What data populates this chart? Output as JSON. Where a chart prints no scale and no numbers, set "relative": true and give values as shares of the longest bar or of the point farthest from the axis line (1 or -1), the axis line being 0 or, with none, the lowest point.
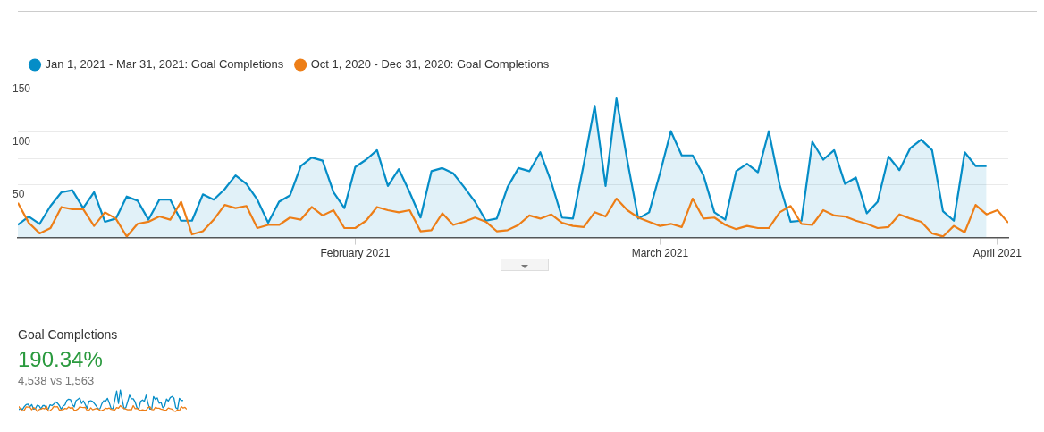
{
  "chart_data": [
    {
      "type": "line",
      "x": [
        "2021-01-01",
        "2021-01-02",
        "2021-01-03",
        "2021-01-04",
        "2021-01-05",
        "2021-01-06",
        "2021-01-07",
        "2021-01-08",
        "2021-01-09",
        "2021-01-10",
        "2021-01-11",
        "2021-01-12",
        "2021-01-13",
        "2021-01-14",
        "2021-01-15",
        "2021-01-16",
        "2021-01-17",
        "2021-01-18",
        "2021-01-19",
        "2021-01-20",
        "2021-01-21",
        "2021-01-22",
        "2021-01-23",
        "2021-01-24",
        "2021-01-25",
        "2021-01-26",
        "2021-01-27",
        "2021-01-28",
        "2021-01-29",
        "2021-01-30",
        "2021-01-31",
        "2021-02-01",
        "2021-02-02",
        "2021-02-03",
        "2021-02-04",
        "2021-02-05",
        "2021-02-06",
        "2021-02-07",
        "2021-02-08",
        "2021-02-09",
        "2021-02-10",
        "2021-02-11",
        "2021-02-12",
        "2021-02-13",
        "2021-02-14",
        "2021-02-15",
        "2021-02-16",
        "2021-02-17",
        "2021-02-18",
        "2021-02-19",
        "2021-02-20",
        "2021-02-21",
        "2021-02-22",
        "2021-02-23",
        "2021-02-24",
        "2021-02-25",
        "2021-02-26",
        "2021-02-27",
        "2021-02-28",
        "2021-03-01",
        "2021-03-02",
        "2021-03-03",
        "2021-03-04",
        "2021-03-05",
        "2021-03-06",
        "2021-03-07",
        "2021-03-08",
        "2021-03-09",
        "2021-03-10",
        "2021-03-11",
        "2021-03-12",
        "2021-03-13",
        "2021-03-14",
        "2021-03-15",
        "2021-03-16",
        "2021-03-17",
        "2021-03-18",
        "2021-03-19",
        "2021-03-20",
        "2021-03-21",
        "2021-03-22",
        "2021-03-23",
        "2021-03-24",
        "2021-03-25",
        "2021-03-26",
        "2021-03-27",
        "2021-03-28",
        "2021-03-29",
        "2021-03-30",
        "2021-03-31",
        "2021-04-01",
        "2021-04-02"
      ],
      "xlim": [
        "2021-01-01",
        "2021-04-02"
      ],
      "xticks": [
        {
          "value": "2021-02-01",
          "label": "February 2021"
        },
        {
          "value": "2021-03-01",
          "label": "March 2021"
        },
        {
          "value": "2021-04-01",
          "label": "April 2021"
        }
      ],
      "ylim": [
        0,
        150
      ],
      "yticks": [
        50,
        {
          "value": 75,
          "label": null
        },
        100,
        {
          "value": 125,
          "label": null
        },
        150
      ],
      "series": [
        {
          "name": "Jan 1, 2021 - Mar 31, 2021: Goal Completions",
          "type": "area",
          "color": "#058dc7",
          "values": [
            12,
            20,
            13,
            30,
            43,
            45,
            28,
            43,
            15,
            18,
            39,
            35,
            17,
            36,
            36,
            16,
            16,
            41,
            36,
            46,
            59,
            51,
            36,
            14,
            34,
            40,
            68,
            76,
            73,
            43,
            28,
            67,
            74,
            83,
            49,
            65,
            43,
            19,
            63,
            66,
            61,
            48,
            34,
            16,
            18,
            48,
            66,
            63,
            81,
            53,
            19,
            18,
            70,
            125,
            49,
            132,
            73,
            18,
            24,
            61,
            101,
            78,
            78,
            59,
            24,
            17,
            63,
            70,
            62,
            101,
            50,
            15,
            16,
            91,
            74,
            83,
            51,
            57,
            23,
            34,
            77,
            64,
            85,
            93,
            83,
            25,
            16,
            81,
            68,
            68,
            null,
            null
          ]
        },
        {
          "name": "Oct 1, 2020 - Dec 31, 2020: Goal Completions",
          "type": "line",
          "color": "#ed7e17",
          "values": [
            33,
            14,
            4,
            9,
            29,
            27,
            27,
            11,
            24,
            18,
            1,
            13,
            15,
            20,
            17,
            34,
            3,
            6,
            17,
            31,
            28,
            30,
            9,
            12,
            12,
            19,
            17,
            29,
            21,
            26,
            9,
            9,
            16,
            29,
            26,
            24,
            26,
            6,
            7,
            23,
            12,
            15,
            19,
            15,
            6,
            7,
            12,
            21,
            18,
            22,
            14,
            11,
            10,
            24,
            20,
            37,
            26,
            19,
            15,
            11,
            13,
            10,
            37,
            18,
            19,
            12,
            8,
            11,
            9,
            9,
            24,
            30,
            13,
            12,
            26,
            21,
            20,
            16,
            13,
            9,
            10,
            22,
            18,
            15,
            4,
            1,
            11,
            5,
            31,
            22,
            26,
            14
          ]
        }
      ],
      "grid": "y",
      "legend": "top left",
      "marker": "none"
    },
    {
      "type": "line",
      "title": "Goal Completions",
      "annotations": [
        "190.34%",
        "4,538 vs 1,563"
      ],
      "relative": true,
      "marker": "none",
      "categories": [
        null,
        null,
        null,
        null,
        null,
        null,
        null,
        null,
        null,
        null,
        null,
        null,
        null,
        null,
        null,
        null,
        null,
        null,
        null,
        null,
        null,
        null,
        null,
        null,
        null,
        null,
        null,
        null,
        null,
        null,
        null,
        null,
        null,
        null,
        null,
        null,
        null,
        null,
        null,
        null,
        null,
        null,
        null,
        null,
        null,
        null,
        null,
        null,
        null,
        null,
        null,
        null,
        null,
        null,
        null,
        null,
        null,
        null,
        null,
        null,
        null,
        null,
        null,
        null,
        null,
        null,
        null,
        null,
        null,
        null,
        null,
        null,
        null,
        null,
        null,
        null,
        null,
        null,
        null,
        null,
        null,
        null,
        null,
        null,
        null,
        null,
        null,
        null,
        null,
        null,
        null,
        null
      ],
      "series": [
        {
          "color": "#058dc7",
          "values": [
            0.08,
            0.15,
            0.09,
            0.22,
            0.32,
            0.34,
            0.21,
            0.32,
            0.11,
            0.13,
            0.29,
            0.26,
            0.12,
            0.27,
            0.27,
            0.11,
            0.11,
            0.31,
            0.27,
            0.34,
            0.44,
            0.38,
            0.27,
            0.1,
            0.25,
            0.3,
            0.51,
            0.57,
            0.55,
            0.32,
            0.21,
            0.5,
            0.56,
            0.63,
            0.37,
            0.49,
            0.32,
            0.14,
            0.47,
            0.5,
            0.46,
            0.36,
            0.25,
            0.11,
            0.13,
            0.36,
            0.5,
            0.47,
            0.61,
            0.4,
            0.14,
            0.13,
            0.53,
            0.95,
            0.37,
            1,
            0.55,
            0.13,
            0.18,
            0.46,
            0.76,
            0.59,
            0.59,
            0.44,
            0.18,
            0.12,
            0.47,
            0.53,
            0.47,
            0.76,
            0.37,
            0.11,
            0.11,
            0.69,
            0.56,
            0.63,
            0.38,
            0.43,
            0.17,
            0.25,
            0.58,
            0.48,
            0.64,
            0.7,
            0.63,
            0.18,
            0.11,
            0.61,
            0.51,
            0.51,
            null,
            null
          ]
        },
        {
          "color": "#ed7e17",
          "values": [
            0.24,
            0.1,
            0.02,
            0.06,
            0.21,
            0.2,
            0.2,
            0.08,
            0.18,
            0.13,
            0,
            0.09,
            0.11,
            0.15,
            0.12,
            0.25,
            0.02,
            0.04,
            0.12,
            0.23,
            0.21,
            0.22,
            0.06,
            0.08,
            0.08,
            0.14,
            0.12,
            0.21,
            0.15,
            0.19,
            0.06,
            0.06,
            0.11,
            0.21,
            0.19,
            0.18,
            0.19,
            0.04,
            0.05,
            0.17,
            0.08,
            0.11,
            0.14,
            0.11,
            0.04,
            0.05,
            0.08,
            0.15,
            0.13,
            0.16,
            0.1,
            0.08,
            0.07,
            0.18,
            0.15,
            0.27,
            0.19,
            0.14,
            0.11,
            0.08,
            0.09,
            0.07,
            0.27,
            0.13,
            0.14,
            0.08,
            0.05,
            0.08,
            0.06,
            0.06,
            0.18,
            0.22,
            0.09,
            0.08,
            0.19,
            0.15,
            0.15,
            0.11,
            0.09,
            0.06,
            0.07,
            0.16,
            0.13,
            0.11,
            0.02,
            0,
            0.08,
            0.03,
            0.23,
            0.16,
            0.19,
            0.1
          ]
        }
      ]
    }
  ]
}
